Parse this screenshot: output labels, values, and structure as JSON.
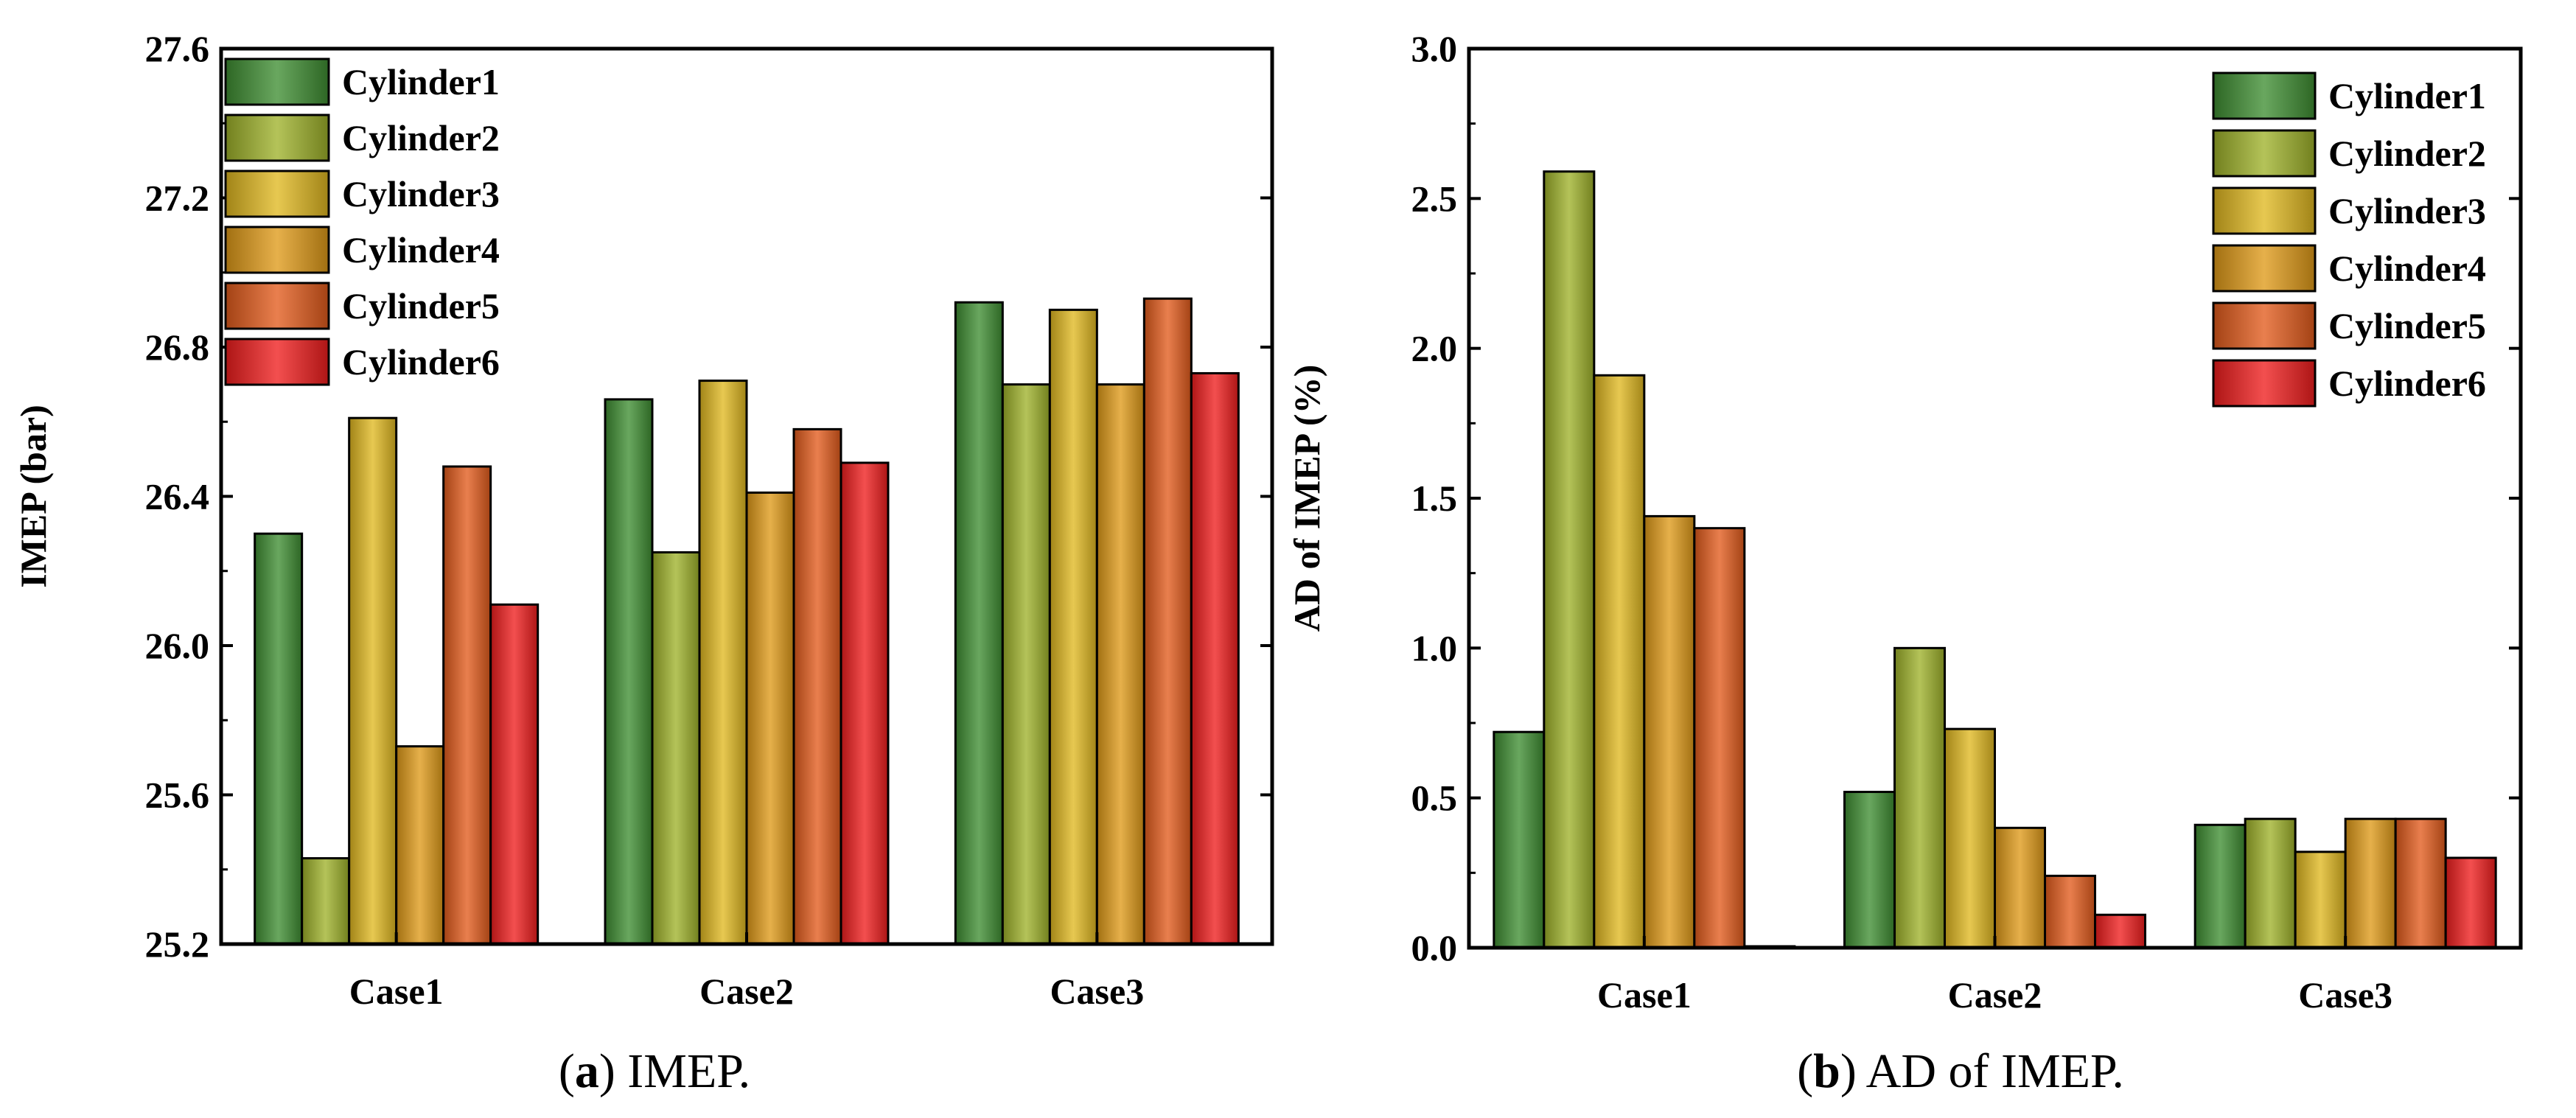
{
  "series_colors": {
    "Cylinder1": "#3f8e32",
    "Cylinder2": "#9fb22a",
    "Cylinder3": "#e0b820",
    "Cylinder4": "#df9a18",
    "Cylinder5": "#e35b1c",
    "Cylinder6": "#f01d1d"
  },
  "captions": [
    {
      "letter": "a",
      "text": " IMEP."
    },
    {
      "letter": "b",
      "text": " AD of IMEP."
    }
  ],
  "chart_data": [
    {
      "type": "bar",
      "title": "",
      "categories": [
        "Case1",
        "Case2",
        "Case3"
      ],
      "xlabel": "",
      "ylabel": "IMEP (bar)",
      "ylim": [
        25.2,
        27.6
      ],
      "yticks": [
        25.2,
        25.6,
        26.0,
        26.4,
        26.8,
        27.2,
        27.6
      ],
      "ytick_labels": [
        "25.2",
        "25.6",
        "26.0",
        "26.4",
        "26.8",
        "27.2",
        "27.6"
      ],
      "legend_position": "top-left",
      "series": [
        {
          "name": "Cylinder1",
          "values": [
            26.3,
            26.66,
            26.92
          ]
        },
        {
          "name": "Cylinder2",
          "values": [
            25.43,
            26.25,
            26.7
          ]
        },
        {
          "name": "Cylinder3",
          "values": [
            26.61,
            26.71,
            26.9
          ]
        },
        {
          "name": "Cylinder4",
          "values": [
            25.73,
            26.41,
            26.7
          ]
        },
        {
          "name": "Cylinder5",
          "values": [
            26.48,
            26.58,
            26.93
          ]
        },
        {
          "name": "Cylinder6",
          "values": [
            26.11,
            26.49,
            26.73
          ]
        }
      ]
    },
    {
      "type": "bar",
      "title": "",
      "categories": [
        "Case1",
        "Case2",
        "Case3"
      ],
      "xlabel": "",
      "ylabel": "AD of IMEP (%)",
      "ylim": [
        0.0,
        3.0
      ],
      "yticks": [
        0.0,
        0.5,
        1.0,
        1.5,
        2.0,
        2.5,
        3.0
      ],
      "ytick_labels": [
        "0.0",
        "0.5",
        "1.0",
        "1.5",
        "2.0",
        "2.5",
        "3.0"
      ],
      "legend_position": "top-right",
      "series": [
        {
          "name": "Cylinder1",
          "values": [
            0.72,
            0.52,
            0.41
          ]
        },
        {
          "name": "Cylinder2",
          "values": [
            2.59,
            1.0,
            0.43
          ]
        },
        {
          "name": "Cylinder3",
          "values": [
            1.91,
            0.73,
            0.32
          ]
        },
        {
          "name": "Cylinder4",
          "values": [
            1.44,
            0.4,
            0.43
          ]
        },
        {
          "name": "Cylinder5",
          "values": [
            1.4,
            0.24,
            0.43
          ]
        },
        {
          "name": "Cylinder6",
          "values": [
            0.0,
            0.11,
            0.3
          ]
        }
      ]
    }
  ]
}
